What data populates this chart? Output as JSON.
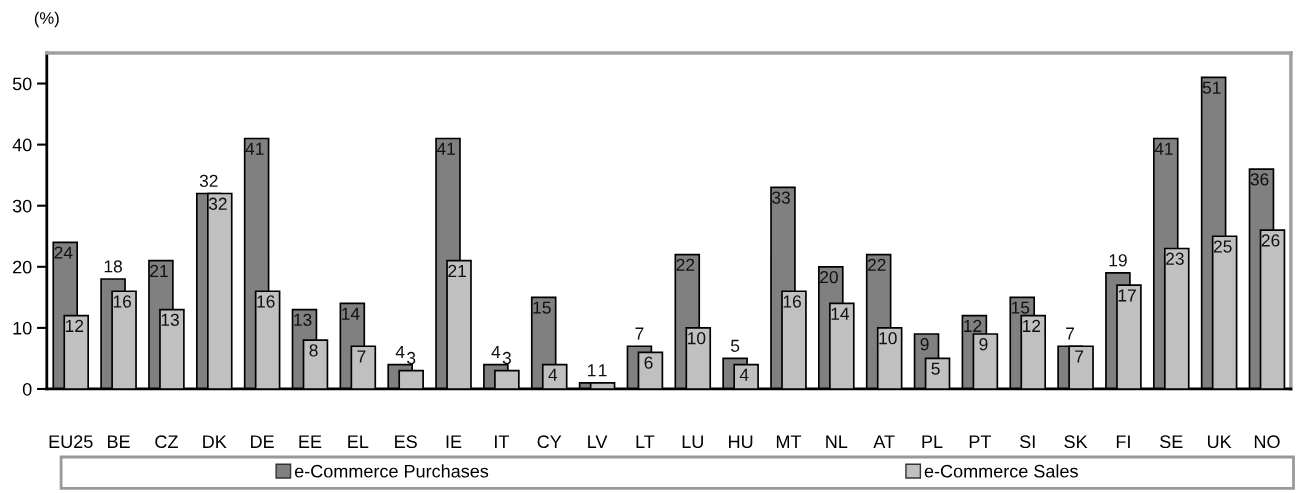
{
  "chart_data": {
    "type": "bar",
    "ylabel": "(%)",
    "categories": [
      "EU25",
      "BE",
      "CZ",
      "DK",
      "DE",
      "EE",
      "EL",
      "ES",
      "IE",
      "IT",
      "CY",
      "LV",
      "LT",
      "LU",
      "HU",
      "MT",
      "NL",
      "AT",
      "PL",
      "PT",
      "SI",
      "SK",
      "FI",
      "SE",
      "UK",
      "NO"
    ],
    "series": [
      {
        "name": "e-Commerce Purchases",
        "color": "#808080",
        "values": [
          24,
          18,
          21,
          32,
          41,
          13,
          14,
          4,
          41,
          4,
          15,
          1,
          7,
          22,
          5,
          33,
          20,
          22,
          9,
          12,
          15,
          7,
          19,
          41,
          51,
          36
        ]
      },
      {
        "name": "e-Commerce Sales",
        "color": "#c0c0c0",
        "values": [
          12,
          16,
          13,
          32,
          16,
          8,
          7,
          3,
          21,
          3,
          4,
          1,
          6,
          10,
          4,
          16,
          14,
          10,
          5,
          9,
          12,
          7,
          17,
          23,
          25,
          26
        ]
      }
    ],
    "ylim": [
      0,
      55
    ],
    "yticks": [
      0,
      10,
      20,
      30,
      40,
      50
    ],
    "data_labels": true,
    "legend": "bottom"
  }
}
